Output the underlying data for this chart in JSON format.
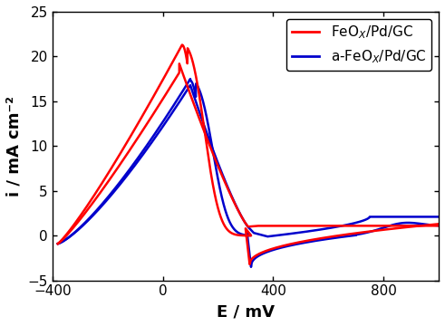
{
  "xlim": [
    -400,
    1000
  ],
  "ylim": [
    -5,
    25
  ],
  "xticks": [
    -400,
    0,
    400,
    800
  ],
  "yticks": [
    -5,
    0,
    5,
    10,
    15,
    20,
    25
  ],
  "xlabel": "E / mV",
  "ylabel": "i / mA cm⁻²",
  "red_color": "#ff0000",
  "blue_color": "#0000cc",
  "lw": 1.8,
  "background_color": "#ffffff",
  "tick_label_fontsize": 11,
  "axis_label_fontsize": 13,
  "legend_fontsize": 11
}
